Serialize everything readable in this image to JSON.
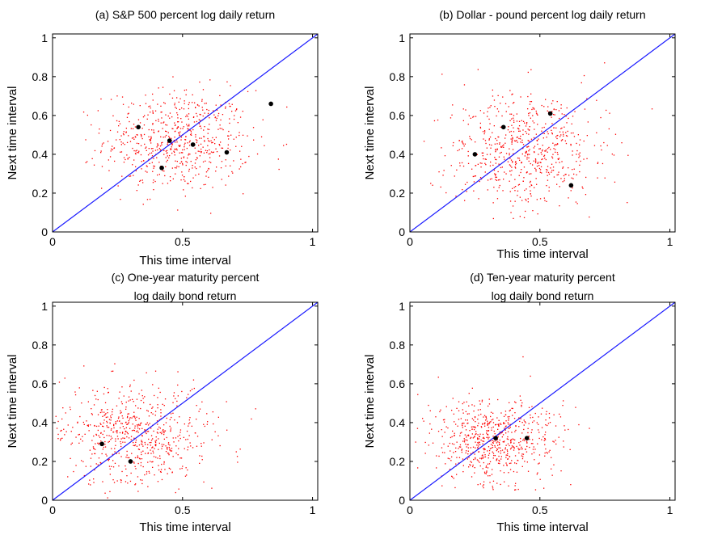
{
  "chart_data": [
    {
      "type": "scatter",
      "title_lines": [
        "(a) S&P 500 percent log daily return"
      ],
      "xlabel": "This time interval",
      "ylabel": "Next time interval",
      "xlim": [
        0,
        1.02
      ],
      "ylim": [
        0,
        1.02
      ],
      "x_ticks": [
        "0",
        "0.5",
        "1"
      ],
      "y_ticks": [
        "0",
        "0.2",
        "0.4",
        "0.6",
        "0.8",
        "1"
      ],
      "reference_line": "y = x",
      "cloud": {
        "center": [
          0.48,
          0.47
        ],
        "spread": [
          0.14,
          0.13
        ],
        "count": 650,
        "color": "#ff0000"
      },
      "highlighted_points": [
        {
          "x": 0.33,
          "y": 0.54
        },
        {
          "x": 0.45,
          "y": 0.47
        },
        {
          "x": 0.42,
          "y": 0.33
        },
        {
          "x": 0.54,
          "y": 0.45
        },
        {
          "x": 0.67,
          "y": 0.41
        },
        {
          "x": 0.84,
          "y": 0.66
        }
      ]
    },
    {
      "type": "scatter",
      "title_lines": [
        "(b) Dollar - pound percent log daily return"
      ],
      "xlabel": "This time interval",
      "ylabel": "Next time interval",
      "xlim": [
        0,
        1.02
      ],
      "ylim": [
        0,
        1.02
      ],
      "x_ticks": [
        "0",
        "0.5",
        "1"
      ],
      "y_ticks": [
        "0",
        "0.2",
        "0.4",
        "0.6",
        "0.8",
        "1"
      ],
      "reference_line": "y = x",
      "cloud": {
        "center": [
          0.44,
          0.42
        ],
        "spread": [
          0.15,
          0.15
        ],
        "count": 650,
        "color": "#ff0000"
      },
      "highlighted_points": [
        {
          "x": 0.25,
          "y": 0.4
        },
        {
          "x": 0.36,
          "y": 0.54
        },
        {
          "x": 0.54,
          "y": 0.61
        },
        {
          "x": 0.62,
          "y": 0.24
        }
      ]
    },
    {
      "type": "scatter",
      "title_lines": [
        "(c) One-year maturity percent",
        "log daily bond return"
      ],
      "xlabel": "This time interval",
      "ylabel": "Next time interval",
      "xlim": [
        0,
        1.02
      ],
      "ylim": [
        0,
        1.02
      ],
      "x_ticks": [
        "0",
        "0.5",
        "1"
      ],
      "y_ticks": [
        "0",
        "0.2",
        "0.4",
        "0.6",
        "0.8",
        "1"
      ],
      "reference_line": "y = x",
      "cloud": {
        "center": [
          0.32,
          0.33
        ],
        "spread": [
          0.14,
          0.13
        ],
        "count": 650,
        "color": "#ff0000"
      },
      "highlighted_points": [
        {
          "x": 0.19,
          "y": 0.29
        },
        {
          "x": 0.3,
          "y": 0.2
        }
      ]
    },
    {
      "type": "scatter",
      "title_lines": [
        "(d) Ten-year maturity percent",
        "log daily bond return"
      ],
      "xlabel": "This time interval",
      "ylabel": "Next time interval",
      "xlim": [
        0,
        1.02
      ],
      "ylim": [
        0,
        1.02
      ],
      "x_ticks": [
        "0",
        "0.5",
        "1"
      ],
      "y_ticks": [
        "0",
        "0.2",
        "0.4",
        "0.6",
        "0.8",
        "1"
      ],
      "reference_line": "y = x",
      "cloud": {
        "center": [
          0.32,
          0.31
        ],
        "spread": [
          0.12,
          0.11
        ],
        "count": 650,
        "color": "#ff0000"
      },
      "highlighted_points": [
        {
          "x": 0.33,
          "y": 0.32
        },
        {
          "x": 0.45,
          "y": 0.32
        }
      ]
    }
  ],
  "colors": {
    "points": "#ff0000",
    "reference_line": "#1a1aff",
    "highlighted": "#000000"
  }
}
